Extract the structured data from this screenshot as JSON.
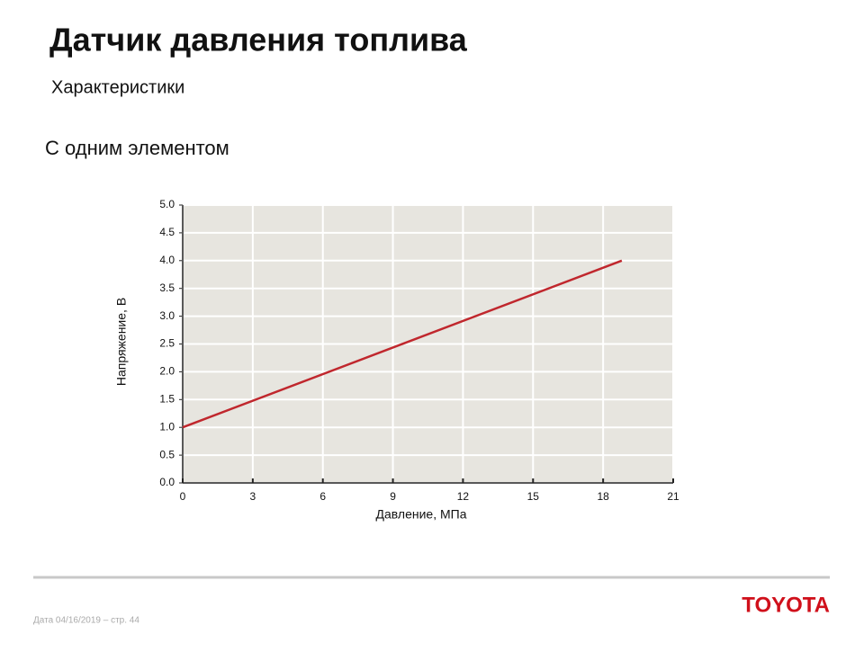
{
  "header": {
    "title": "Датчик давления топлива",
    "subtitle": "Характеристики"
  },
  "section": "С одним элементом",
  "chart_data": {
    "type": "line",
    "x_label": "Давление, МПа",
    "y_label": "Напряжение, В",
    "series": [
      {
        "color": "#c0272d",
        "x": [
          0,
          18.8
        ],
        "values": [
          1.0,
          4.0
        ]
      }
    ],
    "xlim": [
      0,
      21
    ],
    "xticks": [
      0,
      3,
      6,
      9,
      12,
      15,
      18,
      21
    ],
    "ylim": [
      0,
      5
    ],
    "yticks": [
      {
        "value": 0,
        "label": "0.0"
      },
      0.5,
      {
        "value": 1,
        "label": "1.0"
      },
      1.5,
      {
        "value": 2,
        "label": "2.0"
      },
      2.5,
      {
        "value": 3,
        "label": "3.0"
      },
      3.5,
      {
        "value": 4,
        "label": "4.0"
      },
      4.5,
      {
        "value": 5,
        "label": "5.0"
      }
    ],
    "grid": true
  },
  "footer": {
    "date": "Дата 04/16/2019 – стр. 44",
    "logo": "TOYOTA"
  }
}
